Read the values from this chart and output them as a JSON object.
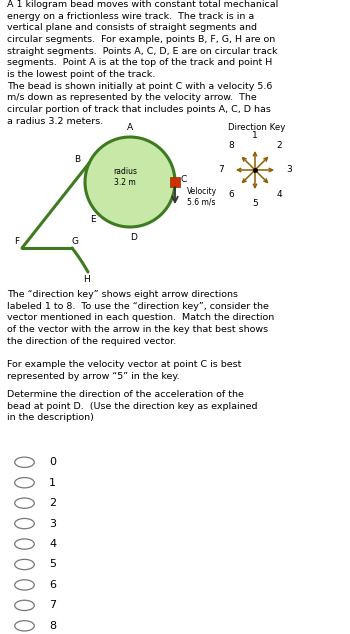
{
  "white": "#ffffff",
  "gray_bg": "#e8e8e8",
  "track_color": "#3d7a20",
  "track_fill": "#c8e8a8",
  "description_text": "A 1 kilogram bead moves with constant total mechanical\nenergy on a frictionless wire track.  The track is in a\nvertical plane and consists of straight segments and\ncircular segments.  For example, points B, F, G, H are on\nstraight segments.  Points A, C, D, E are on circular track\nsegments.  Point A is at the top of the track and point H\nis the lowest point of the track.\nThe bead is shown initially at point C with a velocity 5.6\nm/s down as represented by the velocity arrow.  The\ncircular portion of track that includes points A, C, D has\na radius 3.2 meters.",
  "direction_key_title": "Direction Key",
  "direction_key_numbers": [
    "1",
    "2",
    "3",
    "4",
    "5",
    "6",
    "7",
    "8"
  ],
  "direction_key_angles_deg": [
    90,
    45,
    0,
    -45,
    -90,
    -135,
    180,
    135
  ],
  "arrow_color": "#8B6000",
  "velocity_label": "Velocity\n5.6 m/s",
  "radius_label": "radius\n3.2 m",
  "direction_text": "The “direction key” shows eight arrow directions\nlabeled 1 to 8.  To use the “direction key”, consider the\nvector mentioned in each question.  Match the direction\nof the vector with the arrow in the key that best shows\nthe direction of the required vector.",
  "example_text": "For example the velocity vector at point C is best\nrepresented by arrow “5” in the key.",
  "question_text": "Determine the direction of the acceleration of the\nbead at point D.  (Use the direction key as explained\nin the description)",
  "choices": [
    "0",
    "1",
    "2",
    "3",
    "4",
    "5",
    "6",
    "7",
    "8"
  ]
}
